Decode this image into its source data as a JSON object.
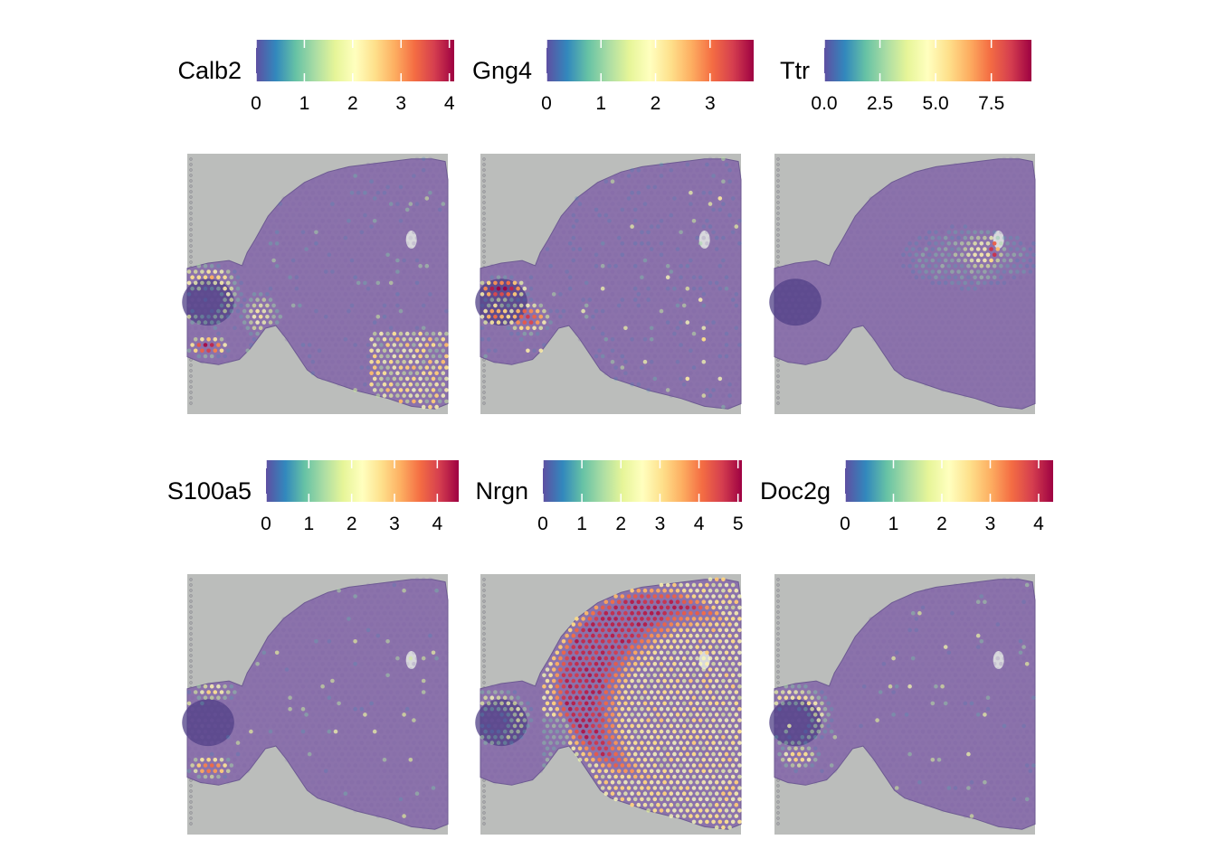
{
  "chart_data": [
    {
      "type": "heatmap",
      "gene": "Calb2",
      "legend": {
        "title": "Calb2",
        "ticks": [
          "0",
          "1",
          "2",
          "3",
          "4"
        ],
        "max": 4.1
      },
      "hotspots": [
        {
          "region": "olfactory bulb outer rim",
          "level": 3.0
        },
        {
          "region": "olfactory bulb ventral band",
          "level": 3.9
        },
        {
          "region": "olfactory bulb dorsal rim",
          "level": 2.6
        },
        {
          "region": "striatum ventral patch",
          "level": 2.0
        },
        {
          "region": "cortex scattered",
          "level": 1.2
        }
      ]
    },
    {
      "type": "heatmap",
      "gene": "Gng4",
      "legend": {
        "title": "Gng4",
        "ticks": [
          "0",
          "1",
          "2",
          "3"
        ],
        "max": 3.8
      },
      "hotspots": [
        {
          "region": "olfactory bulb dorsal layer",
          "level": 3.7
        },
        {
          "region": "olfactory bulb mid layer",
          "level": 3.3
        },
        {
          "region": "olfactory bulb ventral layer",
          "level": 2.8
        },
        {
          "region": "cortex scattered",
          "level": 1.0
        }
      ]
    },
    {
      "type": "heatmap",
      "gene": "Ttr",
      "legend": {
        "title": "Ttr",
        "ticks": [
          "0.0",
          "2.5",
          "5.0",
          "7.5"
        ],
        "max": 9.3
      },
      "hotspots": [
        {
          "region": "lateral ventricle / choroid plexus",
          "level": 9.0
        },
        {
          "region": "surrounding ventricle zone",
          "level": 5.0
        },
        {
          "region": "broad dorsal region",
          "level": 3.0
        }
      ]
    },
    {
      "type": "heatmap",
      "gene": "S100a5",
      "legend": {
        "title": "S100a5",
        "ticks": [
          "0",
          "1",
          "2",
          "3",
          "4"
        ],
        "max": 4.5
      },
      "hotspots": [
        {
          "region": "olfactory bulb ventral band",
          "level": 3.6
        },
        {
          "region": "olfactory bulb dorsal rim",
          "level": 2.6
        },
        {
          "region": "cortex scattered",
          "level": 1.0
        }
      ]
    },
    {
      "type": "heatmap",
      "gene": "Nrgn",
      "legend": {
        "title": "Nrgn",
        "ticks": [
          "0",
          "1",
          "2",
          "3",
          "4",
          "5"
        ],
        "max": 5.1
      },
      "hotspots": [
        {
          "region": "cortex",
          "level": 4.6
        },
        {
          "region": "striatum / posterior",
          "level": 3.6
        },
        {
          "region": "olfactory bulb outer rim",
          "level": 3.6
        }
      ]
    },
    {
      "type": "heatmap",
      "gene": "Doc2g",
      "legend": {
        "title": "Doc2g",
        "ticks": [
          "0",
          "1",
          "2",
          "3",
          "4"
        ],
        "max": 4.3
      },
      "hotspots": [
        {
          "region": "olfactory bulb outer rim",
          "level": 3.5
        },
        {
          "region": "olfactory bulb ventral band",
          "level": 2.8
        },
        {
          "region": "cortex scattered",
          "level": 1.0
        }
      ]
    }
  ],
  "colormap": [
    "#5e4fa2",
    "#3288bd",
    "#66c2a5",
    "#abdda4",
    "#e6f598",
    "#ffffbf",
    "#fee08b",
    "#fdae61",
    "#f46d43",
    "#d53e4f",
    "#9e0142"
  ],
  "colors": {
    "background": "#bbbdbb",
    "tissue": "#8b72ab",
    "spot_base": "#7a61a6"
  }
}
